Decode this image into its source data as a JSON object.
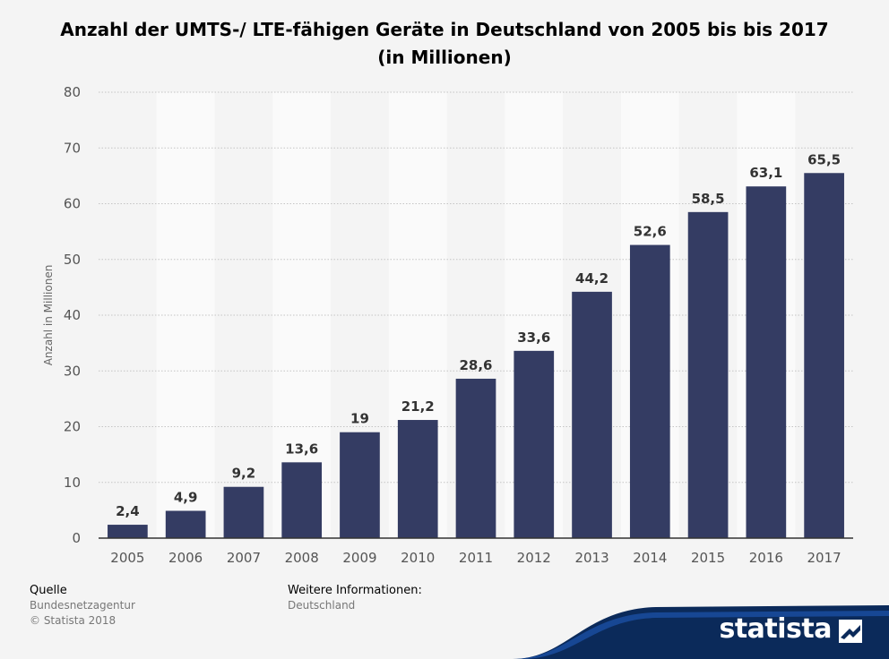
{
  "title_line1": "Anzahl der UMTS-/ LTE-fähigen Geräte in Deutschland von 2005 bis bis 2017",
  "title_line2": "(in Millionen)",
  "colors": {
    "bar": "#343c63",
    "accent": "#1a4fa3",
    "band": "#fafafa"
  },
  "chart_data": {
    "type": "bar",
    "title": "Anzahl der UMTS-/ LTE-fähigen Geräte in Deutschland von 2005 bis bis 2017 (in Millionen)",
    "xlabel": "",
    "ylabel": "Anzahl in Millionen",
    "ylim": [
      0,
      80
    ],
    "yticks": [
      0,
      10,
      20,
      30,
      40,
      50,
      60,
      70,
      80
    ],
    "grid": true,
    "categories": [
      "2005",
      "2006",
      "2007",
      "2008",
      "2009",
      "2010",
      "2011",
      "2012",
      "2013",
      "2014",
      "2015",
      "2016",
      "2017"
    ],
    "values": [
      2.4,
      4.9,
      9.2,
      13.6,
      19,
      21.2,
      28.6,
      33.6,
      44.2,
      52.6,
      58.5,
      63.1,
      65.5
    ],
    "value_labels": [
      "2,4",
      "4,9",
      "9,2",
      "13,6",
      "19",
      "21,2",
      "28,6",
      "33,6",
      "44,2",
      "52,6",
      "58,5",
      "63,1",
      "65,5"
    ]
  },
  "footer": {
    "source_heading": "Quelle",
    "source_name": "Bundesnetzagentur",
    "copyright": "© Statista 2018",
    "info_heading": "Weitere Informationen:",
    "info_value": "Deutschland"
  },
  "brand": {
    "name": "statista",
    "icon": "statista-logo-icon"
  }
}
